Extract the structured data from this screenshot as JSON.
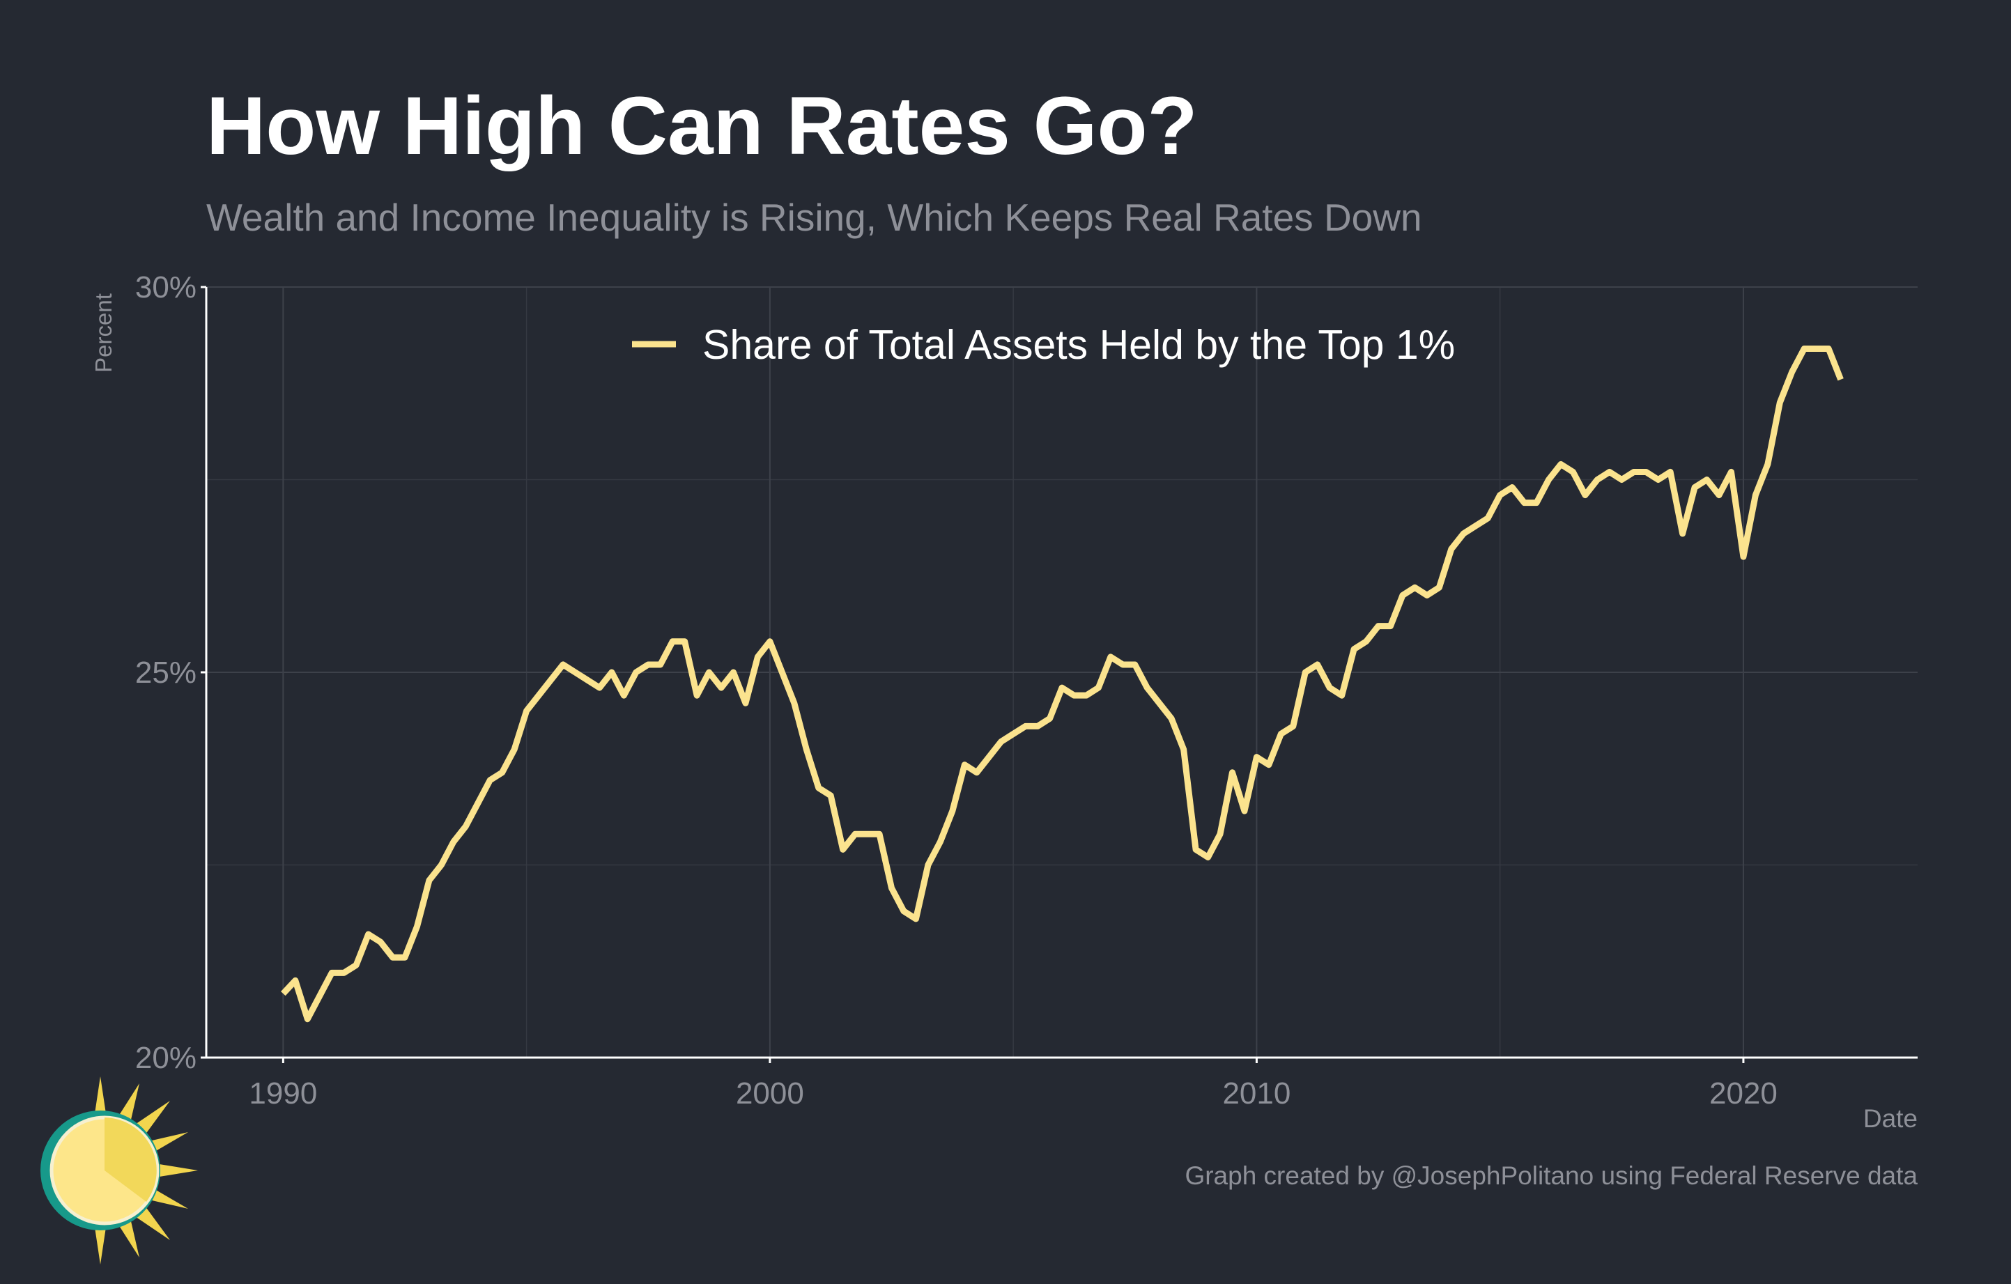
{
  "chart_data": {
    "type": "line",
    "title": "How High Can Rates Go?",
    "subtitle": "Wealth and Income Inequality is Rising, Which Keeps Real Rates Down",
    "y_label": "Percent",
    "x_label": "Date",
    "caption": "Graph created by @JosephPolitano using Federal Reserve data",
    "x": [
      1990,
      1990.25,
      1990.5,
      1990.75,
      1991,
      1991.25,
      1991.5,
      1991.75,
      1992,
      1992.25,
      1992.5,
      1992.75,
      1993,
      1993.25,
      1993.5,
      1993.75,
      1994,
      1994.25,
      1994.5,
      1994.75,
      1995,
      1995.25,
      1995.5,
      1995.75,
      1996,
      1996.25,
      1996.5,
      1996.75,
      1997,
      1997.25,
      1997.5,
      1997.75,
      1998,
      1998.25,
      1998.5,
      1998.75,
      1999,
      1999.25,
      1999.5,
      1999.75,
      2000,
      2000.25,
      2000.5,
      2000.75,
      2001,
      2001.25,
      2001.5,
      2001.75,
      2002,
      2002.25,
      2002.5,
      2002.75,
      2003,
      2003.25,
      2003.5,
      2003.75,
      2004,
      2004.25,
      2004.5,
      2004.75,
      2005,
      2005.25,
      2005.5,
      2005.75,
      2006,
      2006.25,
      2006.5,
      2006.75,
      2007,
      2007.25,
      2007.5,
      2007.75,
      2008,
      2008.25,
      2008.5,
      2008.75,
      2009,
      2009.25,
      2009.5,
      2009.75,
      2010,
      2010.25,
      2010.5,
      2010.75,
      2011,
      2011.25,
      2011.5,
      2011.75,
      2012,
      2012.25,
      2012.5,
      2012.75,
      2013,
      2013.25,
      2013.5,
      2013.75,
      2014,
      2014.25,
      2014.5,
      2014.75,
      2015,
      2015.25,
      2015.5,
      2015.75,
      2016,
      2016.25,
      2016.5,
      2016.75,
      2017,
      2017.25,
      2017.5,
      2017.75,
      2018,
      2018.25,
      2018.5,
      2018.75,
      2019,
      2019.25,
      2019.5,
      2019.75,
      2020,
      2020.25,
      2020.5,
      2020.75,
      2021,
      2021.25,
      2021.5,
      2021.75,
      2022
    ],
    "series": [
      {
        "name": "Share of Total Assets Held by the Top 1%",
        "color": "#fbe38e",
        "values": [
          20.83,
          21.0,
          20.5,
          20.8,
          21.1,
          21.1,
          21.2,
          21.6,
          21.5,
          21.3,
          21.3,
          21.7,
          22.3,
          22.5,
          22.8,
          23.0,
          23.3,
          23.6,
          23.7,
          24.0,
          24.5,
          24.7,
          24.9,
          25.1,
          25.0,
          24.9,
          24.8,
          25.0,
          24.7,
          25.0,
          25.1,
          25.1,
          25.4,
          25.4,
          24.7,
          25.0,
          24.8,
          25.0,
          24.6,
          25.2,
          25.4,
          25.0,
          24.6,
          24.0,
          23.5,
          23.4,
          22.7,
          22.9,
          22.9,
          22.9,
          22.2,
          21.9,
          21.8,
          22.5,
          22.8,
          23.2,
          23.8,
          23.7,
          23.9,
          24.1,
          24.2,
          24.3,
          24.3,
          24.4,
          24.8,
          24.7,
          24.7,
          24.8,
          25.2,
          25.1,
          25.1,
          24.8,
          24.6,
          24.4,
          24.0,
          22.7,
          22.6,
          22.9,
          23.7,
          23.2,
          23.9,
          23.8,
          24.2,
          24.3,
          25.0,
          25.1,
          24.8,
          24.7,
          25.3,
          25.4,
          25.6,
          25.6,
          26.0,
          26.1,
          26.0,
          26.1,
          26.6,
          26.8,
          26.9,
          27.0,
          27.3,
          27.4,
          27.2,
          27.2,
          27.5,
          27.7,
          27.6,
          27.3,
          27.5,
          27.6,
          27.5,
          27.6,
          27.6,
          27.5,
          27.6,
          26.8,
          27.4,
          27.5,
          27.3,
          27.6,
          26.5,
          27.3,
          27.7,
          28.5,
          28.9,
          29.2,
          29.2,
          29.2,
          28.8
        ]
      }
    ],
    "xlim": [
      1988.42,
      2023.58
    ],
    "ylim": [
      20,
      30
    ],
    "xticks": [
      1990,
      2000,
      2010,
      2020
    ],
    "minor_xticks": [
      1995,
      2005,
      2015
    ],
    "yticks": [
      {
        "value": 20,
        "label": "20%"
      },
      {
        "value": 25,
        "label": "25%"
      },
      {
        "value": 30,
        "label": "30%"
      }
    ],
    "minor_yticks": [
      22.5,
      27.5
    ],
    "grid": true
  }
}
